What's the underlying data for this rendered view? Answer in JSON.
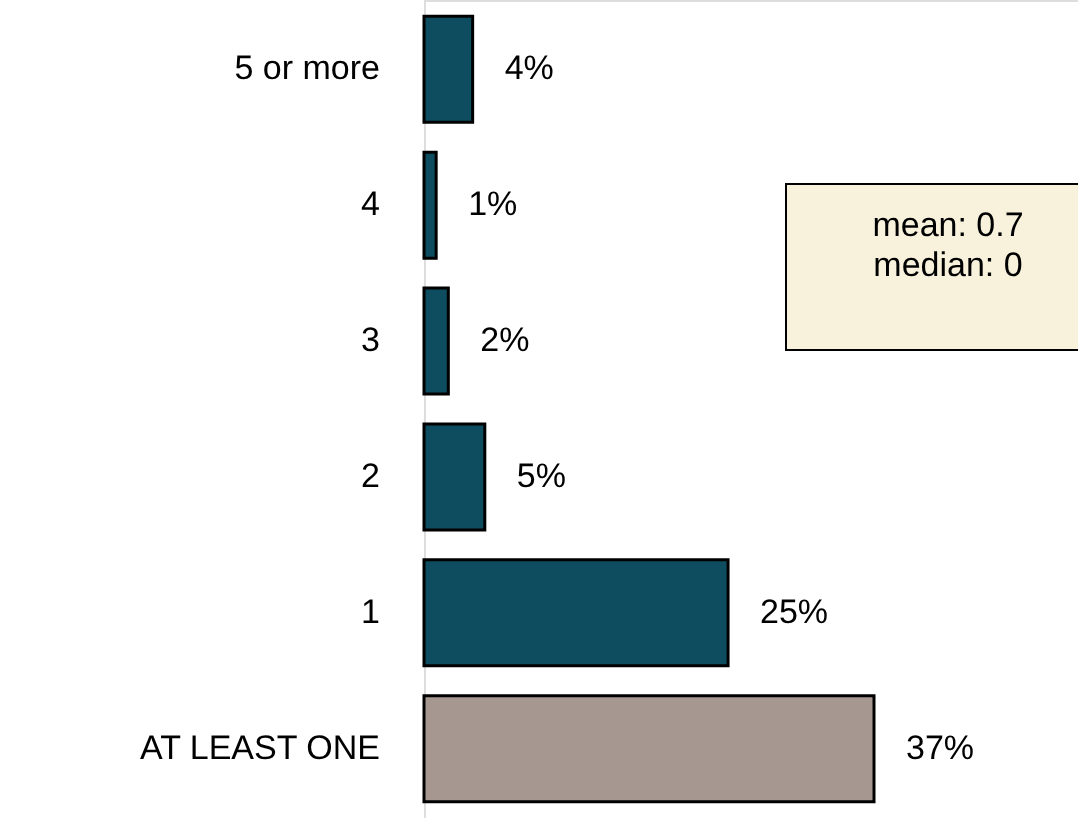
{
  "chart_data": {
    "type": "bar",
    "orientation": "horizontal",
    "categories": [
      "5 or more",
      "4",
      "3",
      "2",
      "1",
      "AT LEAST ONE"
    ],
    "values": [
      4,
      1,
      2,
      5,
      25,
      37
    ],
    "colors": [
      "#0e4d5f",
      "#0e4d5f",
      "#0e4d5f",
      "#0e4d5f",
      "#0e4d5f",
      "#a69890"
    ],
    "value_labels": [
      "4%",
      "1%",
      "2%",
      "5%",
      "25%",
      "37%"
    ],
    "annotations": [
      "mean: 0.7\nmedian: 0"
    ]
  }
}
